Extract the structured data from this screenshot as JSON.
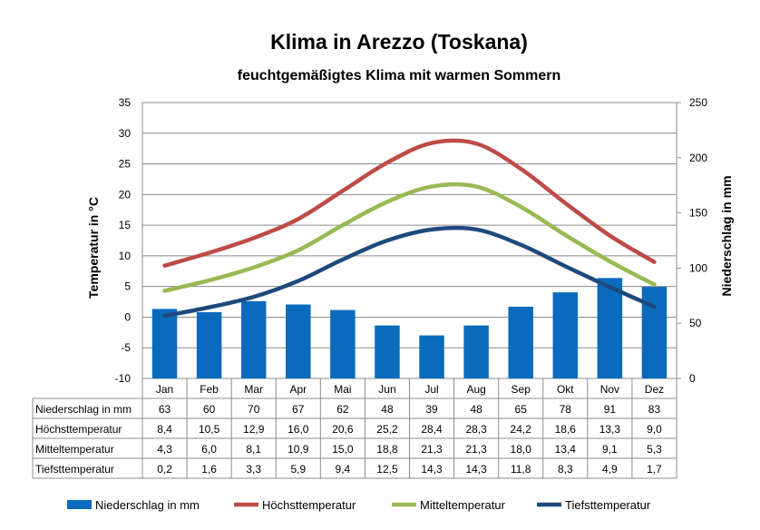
{
  "chart_data": {
    "type": "bar",
    "title": "Klima in Arezzo (Toskana)",
    "subtitle": "feuchtgemäßigtes Klima mit warmen Sommern",
    "categories": [
      "Jan",
      "Feb",
      "Mar",
      "Apr",
      "Mai",
      "Jun",
      "Jul",
      "Aug",
      "Sep",
      "Okt",
      "Nov",
      "Dez"
    ],
    "y_left": {
      "label": "Temperatur  in  °C",
      "range": [
        -10,
        35
      ],
      "ticks": [
        "-10",
        "-5",
        "0",
        "5",
        "10",
        "15",
        "20",
        "25",
        "30",
        "35"
      ]
    },
    "y_right": {
      "label": "Niederschlag  in  mm",
      "range": [
        0,
        250
      ],
      "ticks": [
        "0",
        "50",
        "100",
        "150",
        "200",
        "250"
      ]
    },
    "grid": true,
    "series": [
      {
        "name": "Niederschlag in mm",
        "kind": "bar",
        "axis": "right",
        "color": "#0a6bbd",
        "values": [
          63,
          60,
          70,
          67,
          62,
          48,
          39,
          48,
          65,
          78,
          91,
          83
        ],
        "labels": [
          "63",
          "60",
          "70",
          "67",
          "62",
          "48",
          "39",
          "48",
          "65",
          "78",
          "91",
          "83"
        ]
      },
      {
        "name": "Höchsttemperatur",
        "kind": "line",
        "axis": "left",
        "color": "#be4b48",
        "values": [
          8.4,
          10.5,
          12.9,
          16.0,
          20.6,
          25.2,
          28.4,
          28.3,
          24.2,
          18.6,
          13.3,
          9.0
        ],
        "labels": [
          "8,4",
          "10,5",
          "12,9",
          "16,0",
          "20,6",
          "25,2",
          "28,4",
          "28,3",
          "24,2",
          "18,6",
          "13,3",
          "9,0"
        ]
      },
      {
        "name": "Mitteltemperatur",
        "kind": "line",
        "axis": "left",
        "color": "#98b954",
        "values": [
          4.3,
          6.0,
          8.1,
          10.9,
          15.0,
          18.8,
          21.3,
          21.3,
          18.0,
          13.4,
          9.1,
          5.3
        ],
        "labels": [
          "4,3",
          "6,0",
          "8,1",
          "10,9",
          "15,0",
          "18,8",
          "21,3",
          "21,3",
          "18,0",
          "13,4",
          "9,1",
          "5,3"
        ]
      },
      {
        "name": "Tiefsttemperatur",
        "kind": "line",
        "axis": "left",
        "color": "#1f497d",
        "values": [
          0.2,
          1.6,
          3.3,
          5.9,
          9.4,
          12.5,
          14.3,
          14.3,
          11.8,
          8.3,
          4.9,
          1.7
        ],
        "labels": [
          "0,2",
          "1,6",
          "3,3",
          "5,9",
          "9,4",
          "12,5",
          "14,3",
          "14,3",
          "11,8",
          "8,3",
          "4,9",
          "1,7"
        ]
      }
    ],
    "legend_position": "bottom"
  }
}
